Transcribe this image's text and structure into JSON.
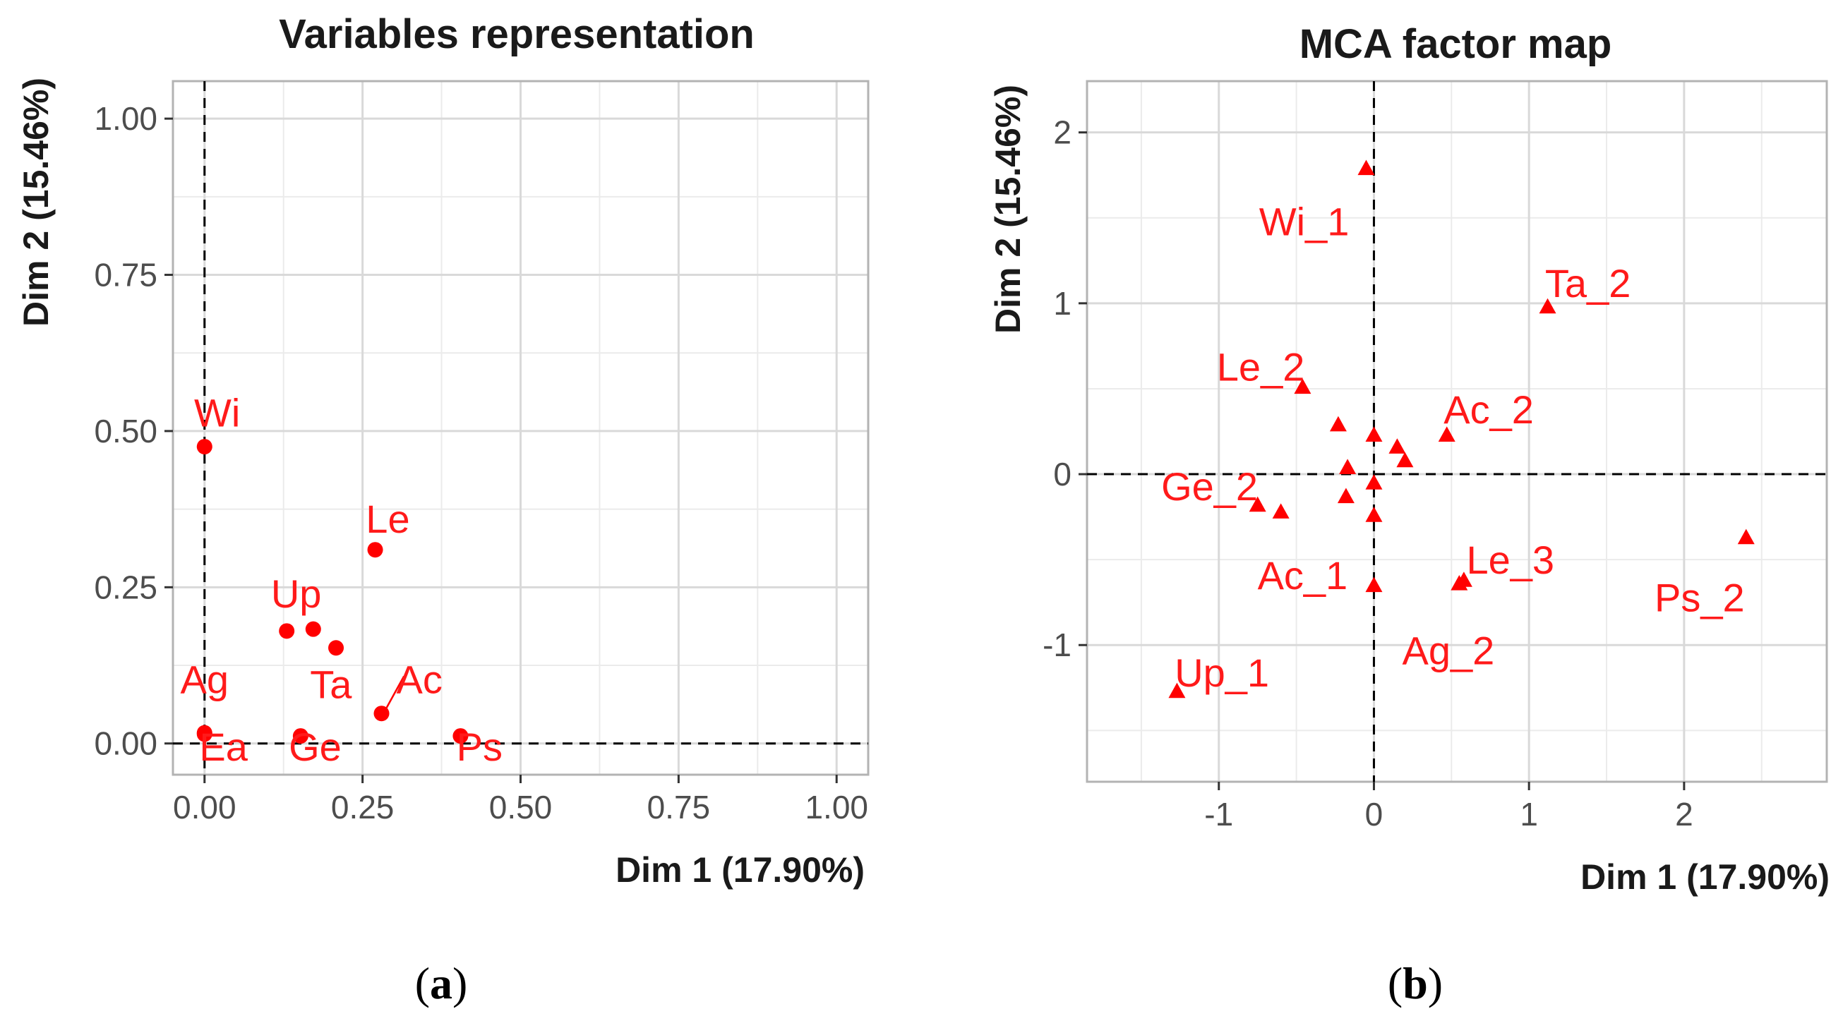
{
  "chart_data": [
    {
      "type": "scatter",
      "title": "Variables representation",
      "xlabel": "Dim 1 (17.90%)",
      "ylabel": "Dim 2 (15.46%)",
      "xlim": [
        -0.05,
        1.05
      ],
      "ylim": [
        -0.05,
        1.06
      ],
      "xticks": [
        0,
        0.25,
        0.5,
        0.75,
        1
      ],
      "yticks": [
        0,
        0.25,
        0.5,
        0.75,
        1
      ],
      "xtick_labels": [
        "0.00",
        "0.25",
        "0.50",
        "0.75",
        "1.00"
      ],
      "ytick_labels": [
        "0.00",
        "0.25",
        "0.50",
        "0.75",
        "1.00"
      ],
      "grid": true,
      "marker": "circle",
      "color": "#ff0000",
      "points": [
        {
          "label": "Wi",
          "x": 0.0,
          "y": 0.475,
          "lx": 0.02,
          "ly": 0.53
        },
        {
          "label": "Le",
          "x": 0.27,
          "y": 0.31,
          "lx": 0.29,
          "ly": 0.36
        },
        {
          "label": "Up",
          "x": 0.13,
          "y": 0.18,
          "lx": 0.145,
          "ly": 0.24
        },
        {
          "label": null,
          "x": 0.172,
          "y": 0.183
        },
        {
          "label": "Ta",
          "x": 0.208,
          "y": 0.153,
          "lx": 0.2,
          "ly": 0.095
        },
        {
          "label": "Ac",
          "x": 0.28,
          "y": 0.048,
          "lx": 0.34,
          "ly": 0.103,
          "line": true
        },
        {
          "label": "Ag",
          "x": 0.0,
          "y": 0.017,
          "lx": 0.0,
          "ly": 0.103
        },
        {
          "label": "Ea",
          "x": 0.0,
          "y": 0.015,
          "lx": 0.03,
          "ly": -0.005
        },
        {
          "label": "Ge",
          "x": 0.152,
          "y": 0.012,
          "lx": 0.175,
          "ly": -0.005
        },
        {
          "label": "Ps",
          "x": 0.405,
          "y": 0.012,
          "lx": 0.435,
          "ly": -0.005
        }
      ]
    },
    {
      "type": "scatter",
      "title": "MCA factor map",
      "xlabel": "Dim 1 (17.90%)",
      "ylabel": "Dim 2 (15.46%)",
      "xlim": [
        -1.85,
        2.92
      ],
      "ylim": [
        -1.8,
        2.3
      ],
      "xticks": [
        -1,
        0,
        1,
        2
      ],
      "yticks": [
        -1,
        0,
        1,
        2
      ],
      "xtick_labels": [
        "-1",
        "0",
        "1",
        "2"
      ],
      "ytick_labels": [
        "-1",
        "0",
        "1",
        "2"
      ],
      "grid": true,
      "marker": "triangle",
      "color": "#ff0000",
      "points": [
        {
          "label": "Wi_1",
          "x": -0.05,
          "y": 1.79,
          "lx": -0.45,
          "ly": 1.48
        },
        {
          "label": "Ta_2",
          "x": 1.12,
          "y": 0.98,
          "lx": 1.38,
          "ly": 1.12
        },
        {
          "label": "Le_2",
          "x": -0.46,
          "y": 0.51,
          "lx": -0.73,
          "ly": 0.63
        },
        {
          "label": "Ac_2",
          "x": 0.47,
          "y": 0.23,
          "lx": 0.74,
          "ly": 0.38
        },
        {
          "label": null,
          "x": -0.23,
          "y": 0.29
        },
        {
          "label": null,
          "x": 0.0,
          "y": 0.23
        },
        {
          "label": null,
          "x": 0.15,
          "y": 0.16
        },
        {
          "label": null,
          "x": 0.2,
          "y": 0.08
        },
        {
          "label": null,
          "x": -0.17,
          "y": 0.04
        },
        {
          "label": null,
          "x": 0.0,
          "y": -0.05
        },
        {
          "label": "Ge_2",
          "x": -0.75,
          "y": -0.18,
          "lx": -1.06,
          "ly": -0.07
        },
        {
          "label": null,
          "x": -0.18,
          "y": -0.13
        },
        {
          "label": "Ac_1",
          "x": -0.6,
          "y": -0.22,
          "lx": -0.46,
          "ly": -0.59
        },
        {
          "label": null,
          "x": 0.0,
          "y": -0.24
        },
        {
          "label": "Le_3",
          "x": 0.58,
          "y": -0.62,
          "lx": 0.88,
          "ly": -0.5
        },
        {
          "label": null,
          "x": 0.55,
          "y": -0.64
        },
        {
          "label": "Ps_2",
          "x": 2.4,
          "y": -0.37,
          "lx": 2.1,
          "ly": -0.72
        },
        {
          "label": "Ag_2",
          "x": 0.0,
          "y": -0.65,
          "lx": 0.48,
          "ly": -1.03
        },
        {
          "label": "Up_1",
          "x": -1.27,
          "y": -1.27,
          "lx": -0.98,
          "ly": -1.16
        }
      ]
    }
  ],
  "captions": [
    "a",
    "b"
  ]
}
